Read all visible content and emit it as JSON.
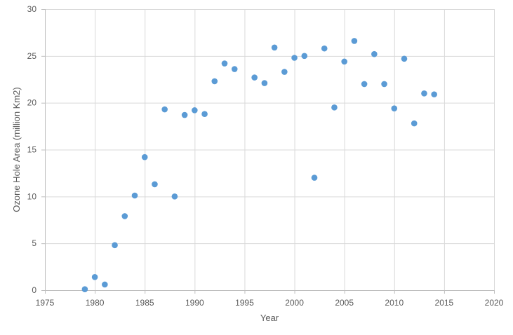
{
  "chart_data": {
    "type": "scatter",
    "xlabel": "Year",
    "ylabel": "Ozone Hole Area (million Km2)",
    "xlim": [
      1975,
      2020
    ],
    "ylim": [
      0,
      30
    ],
    "x_ticks": [
      1975,
      1980,
      1985,
      1990,
      1995,
      2000,
      2005,
      2010,
      2015,
      2020
    ],
    "y_ticks": [
      0,
      5,
      10,
      15,
      20,
      25,
      30
    ],
    "grid": true,
    "legend": "none",
    "marker_color": "#5b9bd5",
    "series": [
      {
        "x": [
          1979,
          1980,
          1981,
          1982,
          1983,
          1984,
          1985,
          1986,
          1987,
          1988,
          1989,
          1990,
          1991,
          1992,
          1993,
          1994,
          1996,
          1997,
          1998,
          1999,
          2000,
          2001,
          2002,
          2003,
          2004,
          2005,
          2006,
          2007,
          2008,
          2009,
          2010,
          2011,
          2012,
          2013,
          2014
        ],
        "y": [
          0.1,
          1.4,
          0.6,
          4.8,
          7.9,
          10.1,
          14.2,
          11.3,
          19.3,
          10.0,
          18.7,
          19.2,
          18.8,
          22.3,
          24.2,
          23.6,
          22.7,
          22.1,
          25.9,
          23.3,
          24.8,
          25.0,
          12.0,
          25.8,
          19.5,
          24.4,
          26.6,
          22.0,
          25.2,
          22.0,
          19.4,
          24.7,
          17.8,
          21.0,
          20.9
        ]
      }
    ]
  }
}
